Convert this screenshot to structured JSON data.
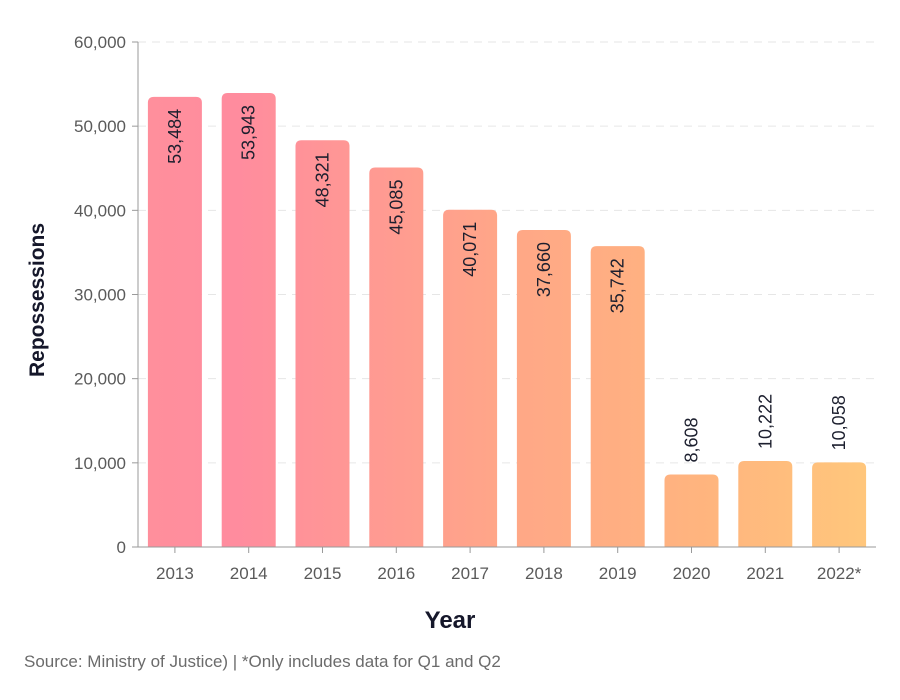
{
  "chart_data": {
    "type": "bar",
    "categories": [
      "2013",
      "2014",
      "2015",
      "2016",
      "2017",
      "2018",
      "2019",
      "2020",
      "2021",
      "2022*"
    ],
    "values": [
      53484,
      53943,
      48321,
      45085,
      40071,
      37660,
      35742,
      8608,
      10222,
      10058
    ],
    "value_labels": [
      "53,484",
      "53,943",
      "48,321",
      "45,085",
      "40,071",
      "37,660",
      "35,742",
      "8,608",
      "10,222",
      "10,058"
    ],
    "title": "",
    "xlabel": "Year",
    "ylabel": "Repossessions",
    "ylim": [
      0,
      60000
    ],
    "yticks": [
      0,
      10000,
      20000,
      30000,
      40000,
      50000,
      60000
    ],
    "ytick_labels": [
      "0",
      "10,000",
      "20,000",
      "30,000",
      "40,000",
      "50,000",
      "60,000"
    ],
    "grid": true,
    "legend": "none",
    "colors": {
      "bar_high": "#ff8f9c",
      "bar_mid": "#ffa686",
      "bar_low": "#ffc77c",
      "grid": "#e6e6e6",
      "axis": "#9a9a9a"
    }
  },
  "footer": {
    "source": "Source: Ministry of Justice) | *Only includes data for Q1 and Q2"
  }
}
